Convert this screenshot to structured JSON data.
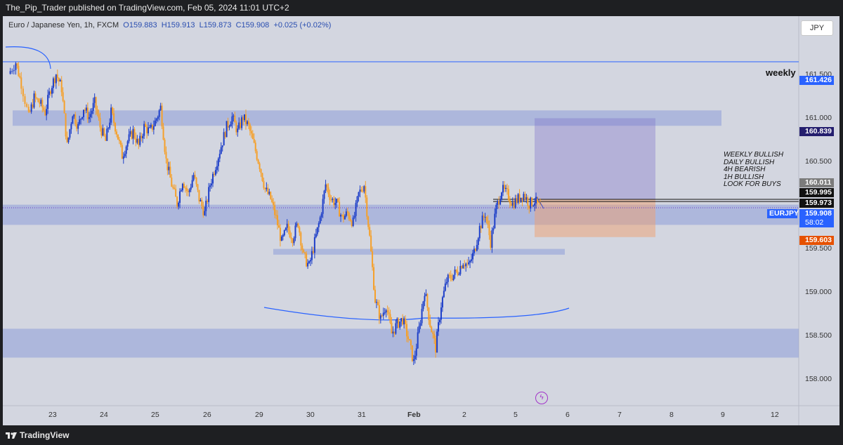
{
  "header": {
    "text": "The_Pip_Trader published on TradingView.com, Feb 05, 2024 11:01 UTC+2"
  },
  "legend": {
    "symbol": "Euro / Japanese Yen, 1h, FXCM",
    "open": "O159.883",
    "high": "H159.913",
    "low": "L159.873",
    "close": "C159.908",
    "change": "+0.025 (+0.02%)"
  },
  "currency_button": "JPY",
  "annotations": {
    "weekly": "weekly",
    "notes": [
      "WEEKLY BULLISH",
      "DAILY BULLISH",
      "4H BEARISH",
      "1H BULLISH",
      "LOOK FOR BUYS"
    ]
  },
  "price_axis": {
    "ticks": [
      "161.500",
      "161.000",
      "160.500",
      "159.500",
      "159.000",
      "158.500",
      "158.000"
    ],
    "tags": [
      {
        "label": "161.426",
        "color": "#2962ff"
      },
      {
        "label": "160.839",
        "color": "#241e6e"
      },
      {
        "label": "160.011",
        "color": "#7b7b7b"
      },
      {
        "label": "159.995",
        "color": "#111111"
      },
      {
        "label": "159.973",
        "color": "#111111"
      },
      {
        "label": "159.908",
        "color": "#2962ff"
      },
      {
        "label": "58:02",
        "color": "#2962ff"
      },
      {
        "label": "159.603",
        "color": "#e65100"
      }
    ],
    "symbol_tag": "EURJPY"
  },
  "time_axis": [
    "23",
    "24",
    "25",
    "26",
    "29",
    "30",
    "31",
    "Feb",
    "2",
    "5",
    "6",
    "7",
    "8",
    "9",
    "12"
  ],
  "footer": {
    "brand": "TradingView"
  },
  "colors": {
    "bull": "#1e3fc8",
    "bear": "#f5a02a",
    "zone": "#8e9fd8",
    "trend": "#2962ff"
  },
  "chart_data": {
    "type": "candlestick",
    "symbol": "EURJPY",
    "timeframe": "1h",
    "ylim": [
      157.85,
      161.9
    ],
    "x_ticks": [
      "23",
      "24",
      "25",
      "26",
      "29",
      "30",
      "31",
      "Feb",
      "2",
      "5",
      "6",
      "7",
      "8",
      "9",
      "12"
    ],
    "close_path": [
      [
        0,
        161.3
      ],
      [
        8,
        161.42
      ],
      [
        14,
        161.2
      ],
      [
        22,
        160.85
      ],
      [
        28,
        161.05
      ],
      [
        34,
        161.0
      ],
      [
        40,
        160.9
      ],
      [
        46,
        161.15
      ],
      [
        52,
        161.3
      ],
      [
        58,
        161.15
      ],
      [
        64,
        160.55
      ],
      [
        70,
        160.9
      ],
      [
        76,
        160.75
      ],
      [
        82,
        160.95
      ],
      [
        88,
        160.85
      ],
      [
        94,
        161.0
      ],
      [
        100,
        160.75
      ],
      [
        106,
        160.6
      ],
      [
        112,
        160.9
      ],
      [
        118,
        160.7
      ],
      [
        124,
        160.45
      ],
      [
        130,
        160.6
      ],
      [
        136,
        160.7
      ],
      [
        142,
        160.55
      ],
      [
        148,
        160.75
      ],
      [
        154,
        160.7
      ],
      [
        160,
        160.8
      ],
      [
        166,
        160.95
      ],
      [
        172,
        160.4
      ],
      [
        178,
        160.15
      ],
      [
        184,
        159.95
      ],
      [
        190,
        160.2
      ],
      [
        196,
        160.05
      ],
      [
        202,
        160.25
      ],
      [
        208,
        160.0
      ],
      [
        214,
        159.85
      ],
      [
        220,
        160.15
      ],
      [
        226,
        160.35
      ],
      [
        232,
        160.55
      ],
      [
        238,
        160.75
      ],
      [
        244,
        160.85
      ],
      [
        250,
        160.7
      ],
      [
        256,
        160.85
      ],
      [
        262,
        160.75
      ],
      [
        268,
        160.55
      ],
      [
        274,
        160.35
      ],
      [
        280,
        160.1
      ],
      [
        286,
        160.0
      ],
      [
        292,
        159.8
      ],
      [
        298,
        159.55
      ],
      [
        304,
        159.7
      ],
      [
        310,
        159.6
      ],
      [
        316,
        159.75
      ],
      [
        322,
        159.4
      ],
      [
        328,
        159.3
      ],
      [
        334,
        159.55
      ],
      [
        340,
        159.8
      ],
      [
        346,
        160.15
      ],
      [
        352,
        160.0
      ],
      [
        358,
        159.95
      ],
      [
        364,
        159.8
      ],
      [
        370,
        159.85
      ],
      [
        376,
        159.75
      ],
      [
        382,
        160.05
      ],
      [
        388,
        160.15
      ],
      [
        394,
        159.6
      ],
      [
        400,
        158.95
      ],
      [
        406,
        158.75
      ],
      [
        412,
        158.9
      ],
      [
        418,
        158.6
      ],
      [
        424,
        158.7
      ],
      [
        430,
        158.75
      ],
      [
        436,
        158.55
      ],
      [
        442,
        158.3
      ],
      [
        448,
        158.65
      ],
      [
        454,
        159.05
      ],
      [
        460,
        158.7
      ],
      [
        466,
        158.45
      ],
      [
        472,
        158.9
      ],
      [
        478,
        159.15
      ],
      [
        484,
        159.2
      ],
      [
        490,
        159.25
      ],
      [
        496,
        159.35
      ],
      [
        502,
        159.3
      ],
      [
        508,
        159.45
      ],
      [
        514,
        159.7
      ],
      [
        520,
        159.85
      ],
      [
        526,
        159.55
      ],
      [
        532,
        159.9
      ],
      [
        538,
        160.1
      ],
      [
        544,
        160.05
      ],
      [
        550,
        159.95
      ],
      [
        556,
        160.0
      ],
      [
        562,
        160.05
      ],
      [
        568,
        159.95
      ],
      [
        574,
        159.98
      ],
      [
        580,
        159.91
      ]
    ],
    "zones": [
      {
        "from": 160.92,
        "to": 160.76
      },
      {
        "from": 159.94,
        "to": 159.73
      },
      {
        "from": 159.48,
        "to": 159.42
      },
      {
        "from": 158.65,
        "to": 158.35
      }
    ],
    "horizontal_line": 161.426,
    "position": {
      "entry": 159.995,
      "target": 160.839,
      "stop": 159.603
    }
  }
}
